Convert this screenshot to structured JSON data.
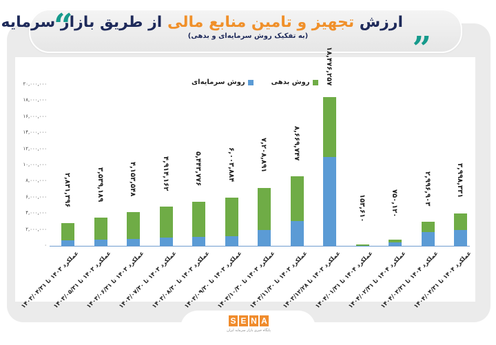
{
  "header": {
    "title_part1": "ارزش ",
    "title_highlight": "تجهیز و تامین منابع مالی",
    "title_part2": " از طریق بازار سرمایه",
    "subtitle": "(به تفکیک روش سرمایه‌ای و بدهی)",
    "quote_left": "“",
    "quote_right": "“"
  },
  "legend": {
    "debt": "روش بدهی",
    "equity": "روش سرمایه‌ای"
  },
  "colors": {
    "debt": "#6fac46",
    "equity": "#5b9bd5",
    "title_dark": "#1e2a5a",
    "title_orange": "#f0902a",
    "quote_teal": "#169a8c",
    "logo_orange": "#f08c2d"
  },
  "y_ticks": [
    "۲۰,۰۰۰,۰۰۰",
    "۱۸,۰۰۰,۰۰۰",
    "۱۶,۰۰۰,۰۰۰",
    "۱۴,۰۰۰,۰۰۰",
    "۱۲,۰۰۰,۰۰۰",
    "۱۰,۰۰۰,۰۰۰",
    "۸,۰۰۰,۰۰۰",
    "۶,۰۰۰,۰۰۰",
    "۴,۰۰۰,۰۰۰",
    "۲,۰۰۰,۰۰۰",
    "۰"
  ],
  "bars": [
    {
      "label": "۲,۸۳۱,۳۹۶",
      "x_label": "عملکرد ۱۴۰۳ تا ۱۴۰۳/۰۴/۳۱"
    },
    {
      "label": "۳,۵۳۹,۱۸۹",
      "x_label": "عملکرد ۱۴۰۳ تا ۱۴۰۳/۰۵/۳۱"
    },
    {
      "label": "۴,۱۵۳,۵۴۸",
      "x_label": "عملکرد ۱۴۰۳ تا ۱۴۰۳/۰۶/۳۱"
    },
    {
      "label": "۴,۹۱۴,۱۶۲",
      "x_label": "عملکرد ۱۴۰۳ تا ۱۴۰۳/۰۷/۳۰"
    },
    {
      "label": "۵,۴۴۳,۷۷۶",
      "x_label": "عملکرد ۱۴۰۳ تا ۱۴۰۳/۰۸/۳۰"
    },
    {
      "label": "۶,۰۰۳,۸۸۴",
      "x_label": "عملکرد ۱۴۰۳ تا ۱۴۰۳/۰۹/۳۰"
    },
    {
      "label": "۷,۲۰۸,۸۹۱",
      "x_label": "عملکرد ۱۴۰۳ تا ۱۴۰۳/۱۰/۳۰"
    },
    {
      "label": "۸,۶۶۹,۷۴۷",
      "x_label": "عملکرد ۱۴۰۳ تا ۱۴۰۳/۱۱/۳۰"
    },
    {
      "label": "۱۸,۴۷۶,۲۵۷",
      "x_label": "عملکرد ۱۴۰۳ تا ۱۴۰۳/۱۲/۲۸"
    },
    {
      "label": "۱۵۳,۶۱۰",
      "x_label": "عملکرد ۱۴۰۴ تا ۱۴۰۴/۰۱/۳۱"
    },
    {
      "label": "۷۵۰,۱۲۰",
      "x_label": "عملکرد ۱۴۰۴ تا ۱۴۰۴/۰۲/۳۱"
    },
    {
      "label": "۲,۹۹۶,۹۰۳",
      "x_label": "عملکرد ۱۴۰۴ تا ۱۴۰۴/۰۳/۳۱"
    },
    {
      "label": "۳,۹۹۸,۳۳۱",
      "x_label": "عملکرد ۱۴۰۴ تا ۱۴۰۴/۰۴/۳۱"
    }
  ],
  "footer": {
    "logo_letters": [
      "S",
      "E",
      "N",
      "A"
    ],
    "tagline": "پایگاه خبری بازار سرمایه ایران"
  },
  "chart_data": {
    "type": "bar",
    "stacked": true,
    "title": "ارزش تجهیز و تامین منابع مالی از طریق بازار سرمایه",
    "subtitle": "(به تفکیک روش سرمایه‌ای و بدهی)",
    "xlabel": "",
    "ylabel": "",
    "ylim": [
      0,
      20000000
    ],
    "y_ticks": [
      0,
      2000000,
      4000000,
      6000000,
      8000000,
      10000000,
      12000000,
      14000000,
      16000000,
      18000000,
      20000000
    ],
    "grid": false,
    "legend_position": "top",
    "categories": [
      "عملکرد ۱۴۰۳ تا ۱۴۰۳/۰۴/۳۱",
      "عملکرد ۱۴۰۳ تا ۱۴۰۳/۰۵/۳۱",
      "عملکرد ۱۴۰۳ تا ۱۴۰۳/۰۶/۳۱",
      "عملکرد ۱۴۰۳ تا ۱۴۰۳/۰۷/۳۰",
      "عملکرد ۱۴۰۳ تا ۱۴۰۳/۰۸/۳۰",
      "عملکرد ۱۴۰۳ تا ۱۴۰۳/۰۹/۳۰",
      "عملکرد ۱۴۰۳ تا ۱۴۰۳/۱۰/۳۰",
      "عملکرد ۱۴۰۳ تا ۱۴۰۳/۱۱/۳۰",
      "عملکرد ۱۴۰۳ تا ۱۴۰۳/۱۲/۲۸",
      "عملکرد ۱۴۰۴ تا ۱۴۰۴/۰۱/۳۱",
      "عملکرد ۱۴۰۴ تا ۱۴۰۴/۰۲/۳۱",
      "عملکرد ۱۴۰۴ تا ۱۴۰۴/۰۳/۳۱",
      "عملکرد ۱۴۰۴ تا ۱۴۰۴/۰۴/۳۱"
    ],
    "totals": [
      2831396,
      3539189,
      4153548,
      4914162,
      5443776,
      6003884,
      7208891,
      8669747,
      18476257,
      153610,
      750120,
      2996903,
      3998331
    ],
    "series": [
      {
        "name": "روش سرمایه‌ای",
        "color": "#5b9bd5",
        "values": [
          700000,
          800000,
          850000,
          1000000,
          1100000,
          1200000,
          2000000,
          3100000,
          11000000,
          20000,
          450000,
          1750000,
          1950000
        ]
      },
      {
        "name": "روش بدهی",
        "color": "#6fac46",
        "values": [
          2131396,
          2739189,
          3303548,
          3914162,
          4343776,
          4803884,
          5208891,
          5569747,
          7476257,
          133610,
          300120,
          1246903,
          2048331
        ]
      }
    ]
  }
}
